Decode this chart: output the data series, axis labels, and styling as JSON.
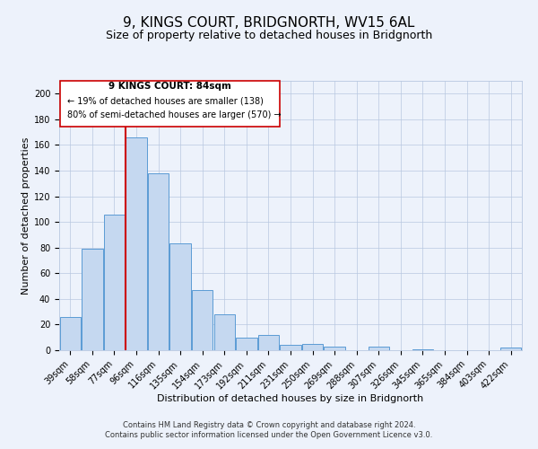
{
  "title": "9, KINGS COURT, BRIDGNORTH, WV15 6AL",
  "subtitle": "Size of property relative to detached houses in Bridgnorth",
  "xlabel": "Distribution of detached houses by size in Bridgnorth",
  "ylabel": "Number of detached properties",
  "bar_labels": [
    "39sqm",
    "58sqm",
    "77sqm",
    "96sqm",
    "116sqm",
    "135sqm",
    "154sqm",
    "173sqm",
    "192sqm",
    "211sqm",
    "231sqm",
    "250sqm",
    "269sqm",
    "288sqm",
    "307sqm",
    "326sqm",
    "345sqm",
    "365sqm",
    "384sqm",
    "403sqm",
    "422sqm"
  ],
  "bar_values": [
    26,
    79,
    106,
    166,
    138,
    83,
    47,
    28,
    10,
    12,
    4,
    5,
    3,
    0,
    3,
    0,
    1,
    0,
    0,
    0,
    2
  ],
  "bar_color": "#c5d8f0",
  "bar_edge_color": "#5b9bd5",
  "ylim": [
    0,
    210
  ],
  "yticks": [
    0,
    20,
    40,
    60,
    80,
    100,
    120,
    140,
    160,
    180,
    200
  ],
  "vline_x": 2.5,
  "vline_color": "#cc0000",
  "annotation_title": "9 KINGS COURT: 84sqm",
  "annotation_line1": "← 19% of detached houses are smaller (138)",
  "annotation_line2": "80% of semi-detached houses are larger (570) →",
  "footer_line1": "Contains HM Land Registry data © Crown copyright and database right 2024.",
  "footer_line2": "Contains public sector information licensed under the Open Government Licence v3.0.",
  "background_color": "#edf2fb",
  "plot_bg_color": "#edf2fb",
  "grid_color": "#b8c8e0",
  "title_fontsize": 11,
  "subtitle_fontsize": 9,
  "axis_label_fontsize": 8,
  "tick_fontsize": 7,
  "footer_fontsize": 6
}
